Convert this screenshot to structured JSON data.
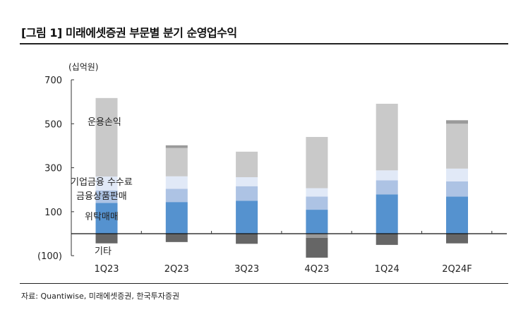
{
  "title": "[그림 1] 미래에셋증권 부문별 분기 순영업수익",
  "source": "자료: Quantiwise, 미래에셋증권, 한국투자증권",
  "chart_data": {
    "type": "bar",
    "stacked": true,
    "unit_label": "(십억원)",
    "categories": [
      "1Q23",
      "2Q23",
      "3Q23",
      "4Q23",
      "1Q24",
      "2Q24F"
    ],
    "ylim": [
      -100,
      700
    ],
    "yticks": [
      700,
      500,
      300,
      100,
      -100
    ],
    "ytick_labels": [
      "700",
      "500",
      "300",
      "100",
      "(100)"
    ],
    "grid": false,
    "legend": "inline-left",
    "series": [
      {
        "name": "위탁매매",
        "color": "#5592cf",
        "values": [
          140,
          144,
          150,
          109,
          179,
          169
        ]
      },
      {
        "name": "금융상품판매",
        "color": "#adc3e4",
        "values": [
          57,
          60,
          66,
          60,
          64,
          69
        ]
      },
      {
        "name": "기업금융 수수료",
        "color": "#e1e9f7",
        "values": [
          63,
          57,
          41,
          38,
          45,
          58
        ]
      },
      {
        "name": "운용손익",
        "color": "#c9c9c9",
        "values": [
          357,
          129,
          116,
          233,
          303,
          204
        ]
      },
      {
        "color": "#9a9a9a",
        "values": [
          0,
          12,
          0,
          -19,
          0,
          16
        ]
      },
      {
        "name": "기타",
        "color": "#666666",
        "values": [
          -44,
          -38,
          -46,
          -90,
          -51,
          -44
        ]
      }
    ]
  }
}
